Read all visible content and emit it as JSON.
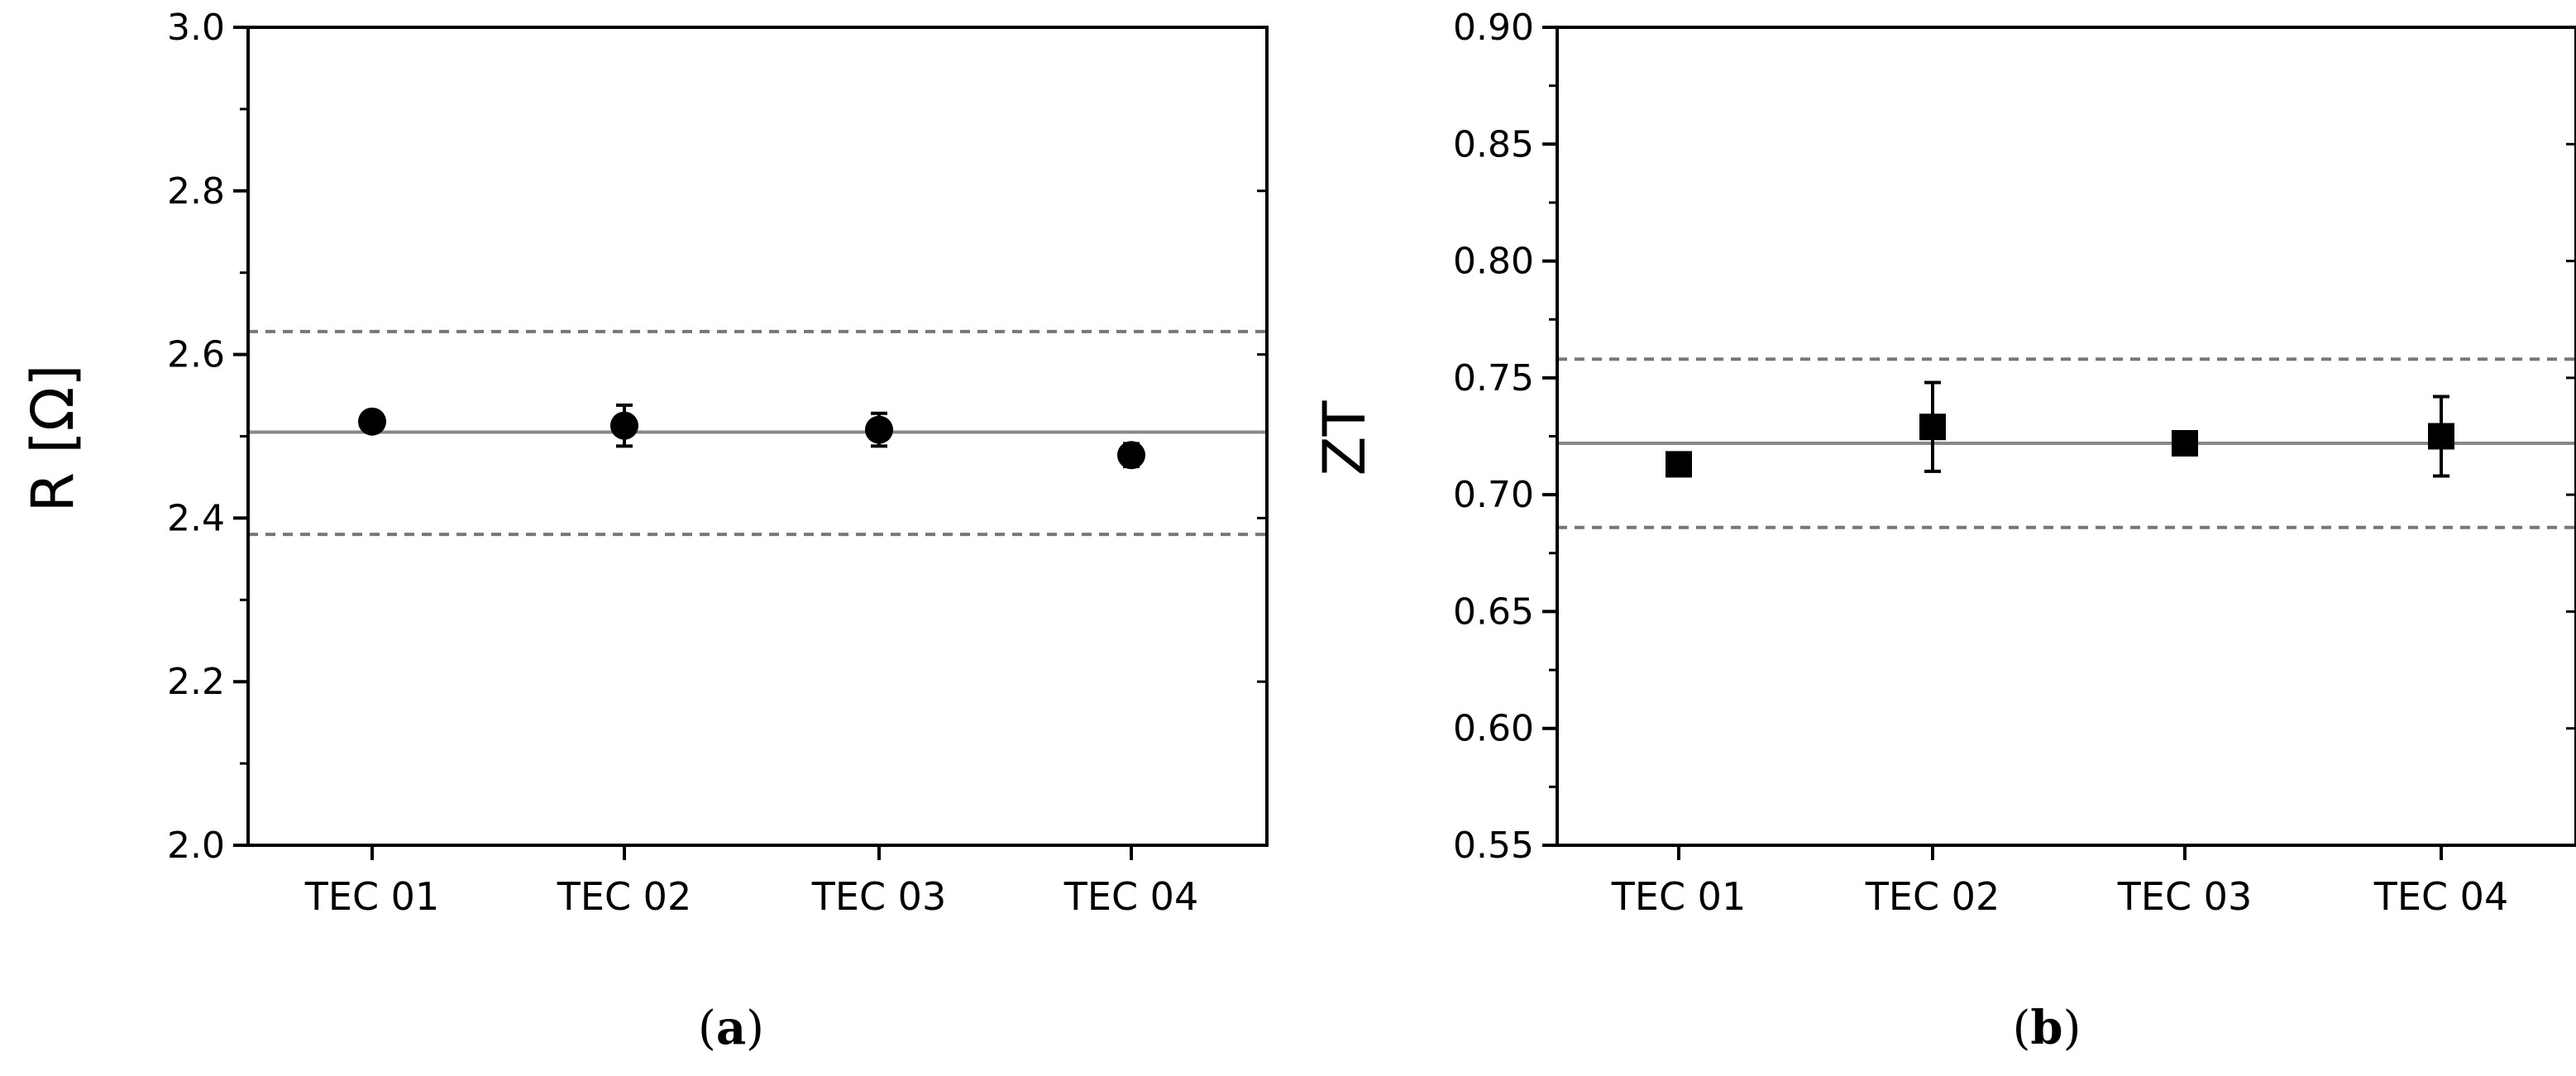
{
  "chart_data": [
    {
      "type": "scatter",
      "panel_label": {
        "open": "(",
        "letter": "a",
        "close": ")"
      },
      "ylabel": "R [Ω]",
      "xlabel": "",
      "categories": [
        "TEC 01",
        "TEC 02",
        "TEC 03",
        "TEC 04"
      ],
      "ylim": [
        2.0,
        3.0
      ],
      "yticks": [
        "2.0",
        "2.2",
        "2.4",
        "2.6",
        "2.8",
        "3.0"
      ],
      "grid": false,
      "marker": "circle",
      "series": [
        {
          "values": [
            2.518,
            2.513,
            2.508,
            2.477
          ],
          "err": [
            0.012,
            0.025,
            0.02,
            0.014
          ]
        }
      ],
      "reference_lines": [
        {
          "value": 2.505,
          "style": "solid"
        },
        {
          "value": 2.628,
          "style": "dashed"
        },
        {
          "value": 2.38,
          "style": "dashed"
        }
      ]
    },
    {
      "type": "scatter",
      "panel_label": {
        "open": "(",
        "letter": "b",
        "close": ")"
      },
      "ylabel": "ZT",
      "xlabel": "",
      "categories": [
        "TEC 01",
        "TEC 02",
        "TEC 03",
        "TEC 04"
      ],
      "ylim": [
        0.55,
        0.9
      ],
      "yticks": [
        "0.55",
        "0.60",
        "0.65",
        "0.70",
        "0.75",
        "0.80",
        "0.85",
        "0.90"
      ],
      "grid": false,
      "marker": "square",
      "series": [
        {
          "values": [
            0.713,
            0.729,
            0.722,
            0.725
          ],
          "err": [
            0.002,
            0.019,
            0.003,
            0.017
          ]
        }
      ],
      "reference_lines": [
        {
          "value": 0.722,
          "style": "solid"
        },
        {
          "value": 0.758,
          "style": "dashed"
        },
        {
          "value": 0.686,
          "style": "dashed"
        }
      ]
    }
  ]
}
